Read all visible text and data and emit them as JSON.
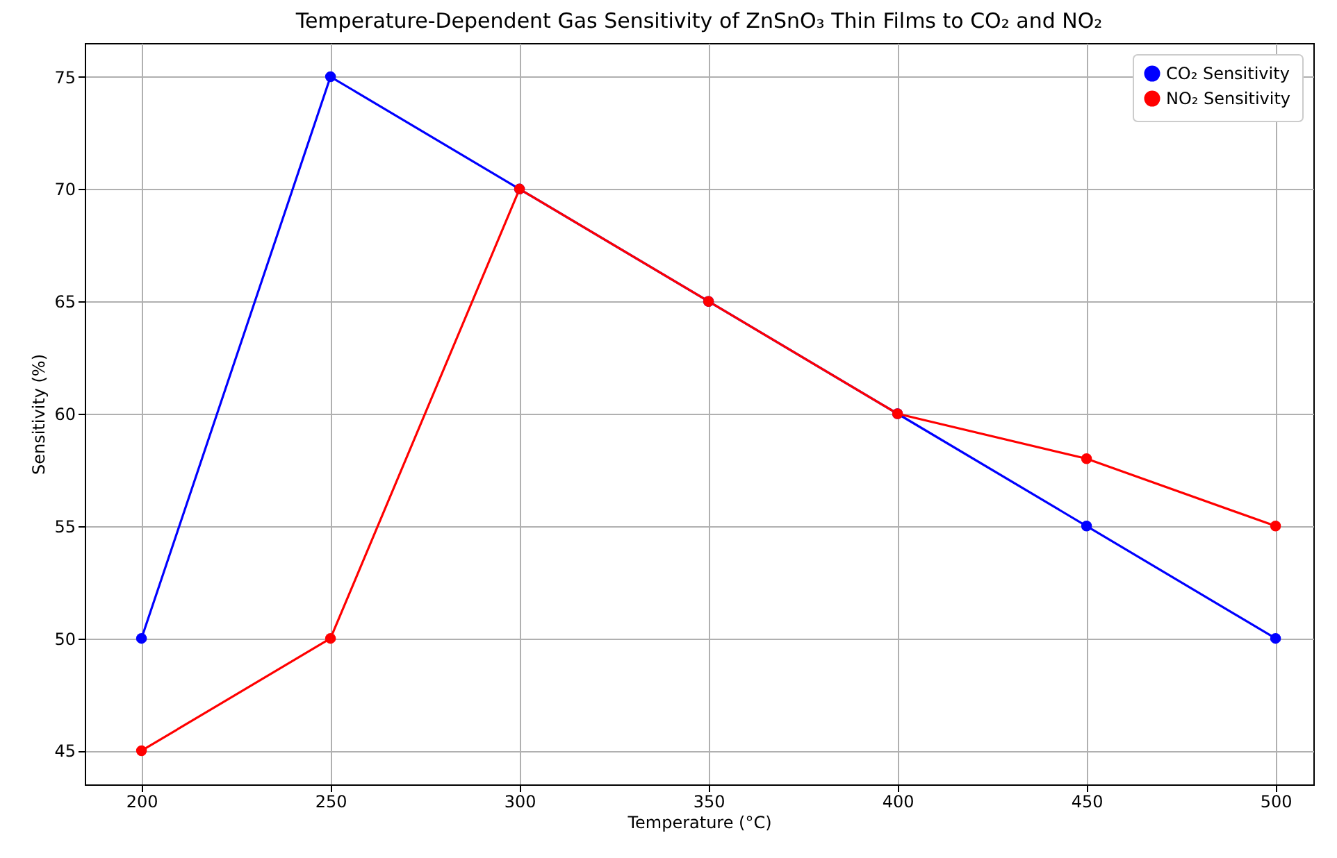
{
  "chart_data": {
    "type": "line",
    "title": "Temperature-Dependent Gas Sensitivity of ZnSnO₃ Thin Films to CO₂ and NO₂",
    "xlabel": "Temperature (°C)",
    "ylabel": "Sensitivity (%)",
    "x": [
      200,
      250,
      300,
      350,
      400,
      450,
      500
    ],
    "series": [
      {
        "name": "CO₂ Sensitivity",
        "color": "#0000ff",
        "values": [
          50,
          75,
          70,
          65,
          60,
          55,
          50
        ]
      },
      {
        "name": "NO₂ Sensitivity",
        "color": "#ff0000",
        "values": [
          45,
          50,
          70,
          65,
          60,
          58,
          55
        ]
      }
    ],
    "xlim": [
      185,
      510
    ],
    "xticks": [
      200,
      250,
      300,
      350,
      400,
      450,
      500
    ],
    "ylim": [
      43.5,
      76.5
    ],
    "yticks": [
      45,
      50,
      55,
      60,
      65,
      70,
      75
    ],
    "grid": true,
    "legend": "top right",
    "marker": "circle",
    "line_style": "solid"
  }
}
